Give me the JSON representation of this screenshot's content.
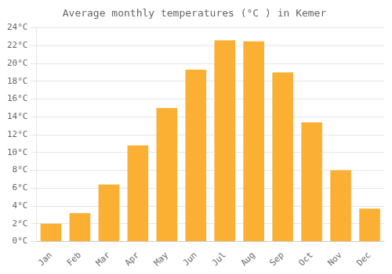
{
  "chart_data": {
    "type": "bar",
    "title": "Average monthly temperatures (°C ) in Kemer",
    "categories": [
      "Jan",
      "Feb",
      "Mar",
      "Apr",
      "May",
      "Jun",
      "Jul",
      "Aug",
      "Sep",
      "Oct",
      "Nov",
      "Dec"
    ],
    "values": [
      2.0,
      3.2,
      6.4,
      10.8,
      15.0,
      19.3,
      22.6,
      22.5,
      19.0,
      13.4,
      8.0,
      3.7
    ],
    "color": "#FBB034",
    "ylim": [
      0,
      24
    ],
    "yticks": [
      {
        "value": 0,
        "label": "0°C"
      },
      {
        "value": 2,
        "label": "2°C"
      },
      {
        "value": 4,
        "label": "4°C"
      },
      {
        "value": 6,
        "label": "6°C"
      },
      {
        "value": 8,
        "label": "8°C"
      },
      {
        "value": 10,
        "label": "10°C"
      },
      {
        "value": 12,
        "label": "12°C"
      },
      {
        "value": 14,
        "label": "14°C"
      },
      {
        "value": 16,
        "label": "16°C"
      },
      {
        "value": 18,
        "label": "18°C"
      },
      {
        "value": 20,
        "label": "20°C"
      },
      {
        "value": 22,
        "label": "22°C"
      },
      {
        "value": 24,
        "label": "24°C"
      }
    ],
    "grid": true
  }
}
